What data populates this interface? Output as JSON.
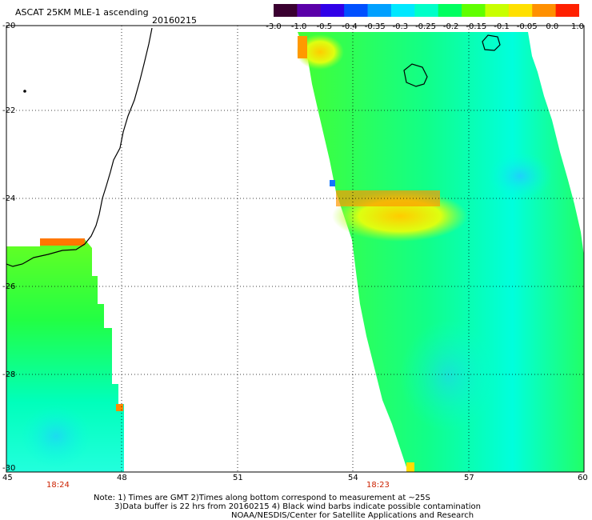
{
  "header": {
    "title": "ASCAT 25KM MLE-1 ascending",
    "date": "20160215"
  },
  "colorbar": {
    "ticks": [
      "-3.0",
      "-1.0",
      "-0.5",
      "-0.4",
      "-0.35",
      "-0.3",
      "-0.25",
      "-0.2",
      "-0.15",
      "-0.1",
      "-0.05",
      "0.0",
      "1.0"
    ],
    "colors": [
      "#3a0030",
      "#5a00a8",
      "#3000e8",
      "#0050ff",
      "#00a0ff",
      "#00e8ff",
      "#00ffc8",
      "#00ff60",
      "#60ff00",
      "#c8ff00",
      "#ffe000",
      "#ff9000",
      "#ff2000"
    ]
  },
  "axes": {
    "y_ticks": [
      "-20",
      "-22",
      "-24",
      "-26",
      "-28",
      "-30"
    ],
    "x_ticks": [
      "45",
      "48",
      "51",
      "54",
      "57",
      "60"
    ],
    "lat_range": [
      -30,
      -20
    ],
    "lon_range": [
      45,
      60
    ]
  },
  "pass_times": [
    "18:24",
    "18:23"
  ],
  "notes": {
    "line1": "Note: 1) Times are GMT 2)Times along bottom correspond to measurement at ~25S",
    "line2": "3)Data buffer is 22 hrs from 20160215 4) Black wind barbs indicate possible contamination",
    "line3": "NOAA/NESDIS/Center for Satellite Applications and Research"
  },
  "colors": {
    "grid": "#000000",
    "coast": "#000000",
    "time_label": "#cc2200"
  }
}
